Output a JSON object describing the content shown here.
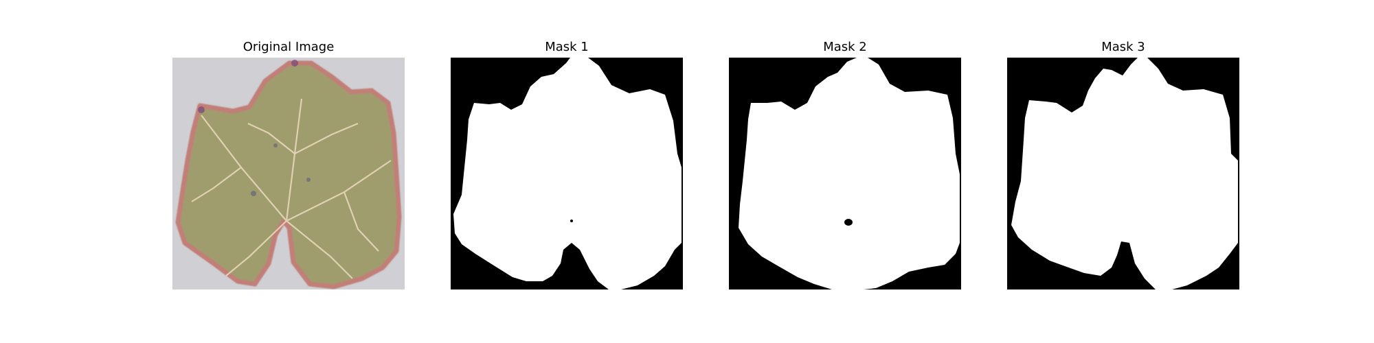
{
  "figure": {
    "panels": [
      {
        "title": "Original Image",
        "kind": "photo"
      },
      {
        "title": "Mask 1",
        "kind": "mask"
      },
      {
        "title": "Mask 2",
        "kind": "mask"
      },
      {
        "title": "Mask 3",
        "kind": "mask"
      }
    ]
  },
  "colors": {
    "mask_background": "#000000",
    "mask_foreground": "#ffffff",
    "photo_background": "#cfcfd4",
    "leaf_fill": "#9f9c6e",
    "leaf_edge": "#c17f77",
    "leaf_vein": "#e6d8b8"
  }
}
